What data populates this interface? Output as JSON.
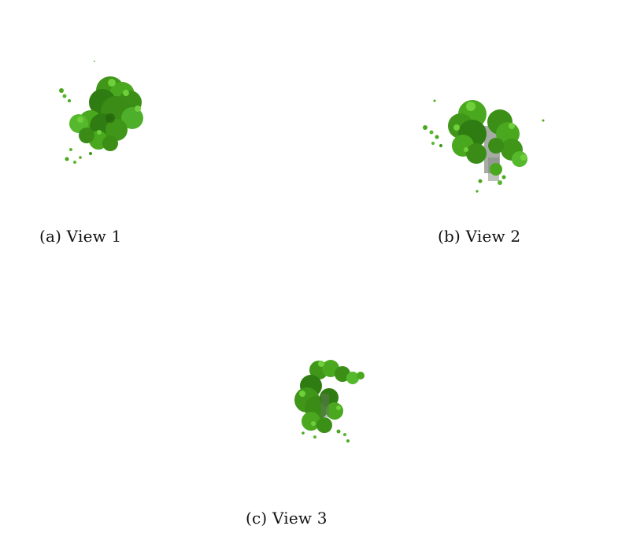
{
  "figure": {
    "panels": [
      {
        "id": "a",
        "caption": "(a) View 1"
      },
      {
        "id": "b",
        "caption": "(b) View 2"
      },
      {
        "id": "c",
        "caption": "(c) View 3"
      }
    ],
    "colors": {
      "foliage_dark": "#2f7d12",
      "foliage_mid": "#4aa81e",
      "foliage_light": "#6fcf3a",
      "trunk_gray": "#6b7466",
      "background": "#ffffff"
    }
  }
}
